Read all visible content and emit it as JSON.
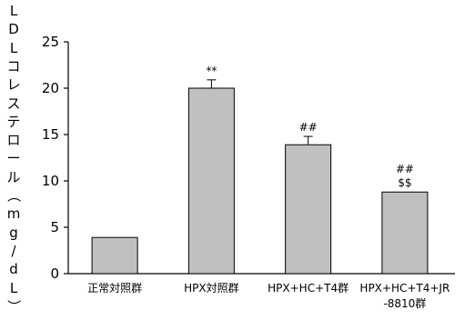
{
  "chart_data": {
    "type": "bar",
    "ylabel": "LDLコレステロール（mg/dL）",
    "ylim": [
      0,
      25
    ],
    "yticks": [
      0,
      5,
      10,
      15,
      20,
      25
    ],
    "categories": [
      [
        "正常対照群"
      ],
      [
        "HPX対照群"
      ],
      [
        "HPX+HC+T4群"
      ],
      [
        "HPX+HC+T4+JR",
        "-8810群"
      ]
    ],
    "values": [
      3.9,
      20.0,
      13.9,
      8.8
    ],
    "errors": [
      0,
      0.9,
      0.9,
      0
    ],
    "annotations": [
      [],
      [
        "**"
      ],
      [
        "##"
      ],
      [
        "##",
        "$$"
      ]
    ],
    "bar_color": "#c0c0c0",
    "grid": false
  }
}
